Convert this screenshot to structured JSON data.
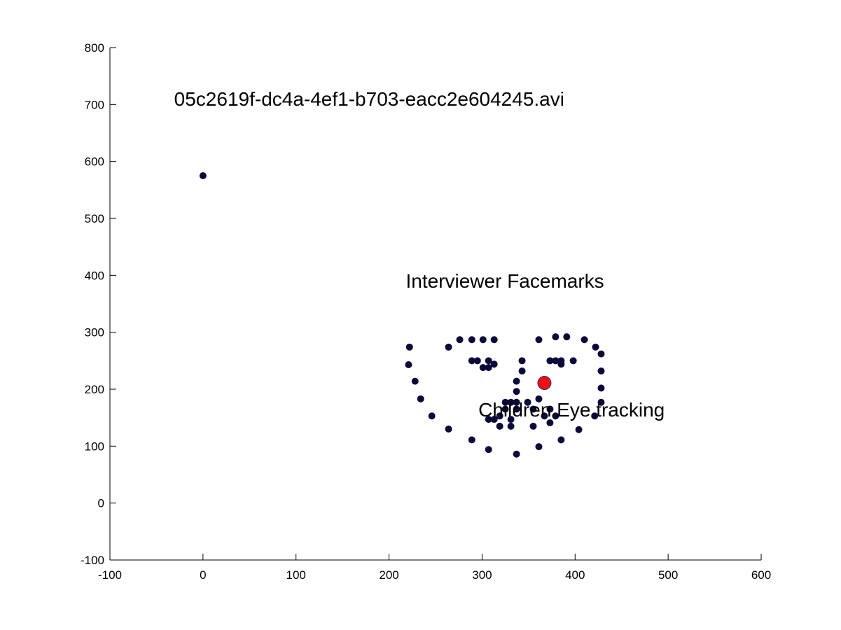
{
  "chart_data": {
    "type": "scatter",
    "xlim": [
      -100,
      600
    ],
    "ylim": [
      -100,
      800
    ],
    "x_ticks": [
      -100,
      0,
      100,
      200,
      300,
      400,
      500,
      600
    ],
    "y_ticks": [
      -100,
      0,
      100,
      200,
      300,
      400,
      500,
      600,
      700,
      800
    ],
    "grid": false,
    "colors": {
      "marker_fill": "#0a0a3a",
      "highlight_fill": "#ee1111",
      "axis": "#000000"
    },
    "annotations": [
      {
        "id": "video_name",
        "text": "05c2619f-dc4a-4ef1-b703-eacc2e604245.avi",
        "x": -31,
        "y": 698
      },
      {
        "id": "interviewer_label",
        "text": "Interviewer Facemarks",
        "x": 218,
        "y": 378
      },
      {
        "id": "child_label",
        "text": "Children Eye tracking",
        "x": 296,
        "y": 152
      }
    ],
    "series": [
      {
        "marker": "dot",
        "points": [
          [
            0,
            575
          ],
          [
            222,
            274
          ],
          [
            221,
            243
          ],
          [
            228,
            214
          ],
          [
            234,
            183
          ],
          [
            246,
            153
          ],
          [
            264,
            130
          ],
          [
            289,
            111
          ],
          [
            307,
            94
          ],
          [
            337,
            86
          ],
          [
            361,
            99
          ],
          [
            385,
            111
          ],
          [
            404,
            129
          ],
          [
            421,
            153
          ],
          [
            428,
            177
          ],
          [
            428,
            202
          ],
          [
            428,
            232
          ],
          [
            428,
            262
          ],
          [
            422,
            274
          ],
          [
            264,
            274
          ],
          [
            276,
            287
          ],
          [
            289,
            287
          ],
          [
            301,
            287
          ],
          [
            313,
            287
          ],
          [
            361,
            287
          ],
          [
            379,
            292
          ],
          [
            391,
            292
          ],
          [
            410,
            287
          ],
          [
            337,
            214
          ],
          [
            337,
            196
          ],
          [
            337,
            177
          ],
          [
            343,
            232
          ],
          [
            343,
            250
          ],
          [
            289,
            250
          ],
          [
            295,
            250
          ],
          [
            301,
            238
          ],
          [
            307,
            238
          ],
          [
            307,
            250
          ],
          [
            313,
            244
          ],
          [
            373,
            250
          ],
          [
            379,
            250
          ],
          [
            385,
            250
          ],
          [
            385,
            244
          ],
          [
            398,
            250
          ],
          [
            325,
            177
          ],
          [
            331,
            177
          ],
          [
            325,
            165
          ],
          [
            319,
            153
          ],
          [
            319,
            135
          ],
          [
            331,
            147
          ],
          [
            331,
            135
          ],
          [
            337,
            165
          ],
          [
            349,
            177
          ],
          [
            355,
            165
          ],
          [
            355,
            135
          ],
          [
            361,
            183
          ],
          [
            367,
            153
          ],
          [
            373,
            165
          ],
          [
            373,
            141
          ],
          [
            379,
            153
          ],
          [
            307,
            147
          ],
          [
            313,
            147
          ]
        ]
      },
      {
        "marker": "large-dot",
        "points": [
          [
            367,
            211
          ]
        ]
      }
    ]
  }
}
